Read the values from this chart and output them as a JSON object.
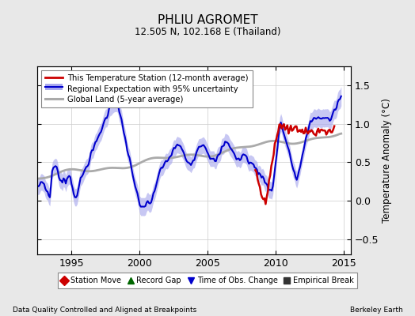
{
  "title": "PHLIU AGROMET",
  "subtitle": "12.505 N, 102.168 E (Thailand)",
  "ylabel": "Temperature Anomaly (°C)",
  "ylim": [
    -0.7,
    1.75
  ],
  "xlim": [
    1992.5,
    2015.5
  ],
  "yticks": [
    -0.5,
    0.0,
    0.5,
    1.0,
    1.5
  ],
  "xticks": [
    1995,
    2000,
    2005,
    2010,
    2015
  ],
  "legend_lines": [
    "This Temperature Station (12-month average)",
    "Regional Expectation with 95% uncertainty",
    "Global Land (5-year average)"
  ],
  "legend_markers": [
    {
      "label": "Station Move",
      "color": "#cc0000",
      "marker": "D"
    },
    {
      "label": "Record Gap",
      "color": "#006600",
      "marker": "^"
    },
    {
      "label": "Time of Obs. Change",
      "color": "#0000cc",
      "marker": "v"
    },
    {
      "label": "Empirical Break",
      "color": "#333333",
      "marker": "s"
    }
  ],
  "footer_left": "Data Quality Controlled and Aligned at Breakpoints",
  "footer_right": "Berkeley Earth",
  "bg_color": "#e8e8e8",
  "plot_bg_color": "#ffffff",
  "regional_line_color": "#0000cc",
  "regional_fill_color": "#aaaaee",
  "station_line_color": "#cc0000",
  "global_line_color": "#aaaaaa"
}
